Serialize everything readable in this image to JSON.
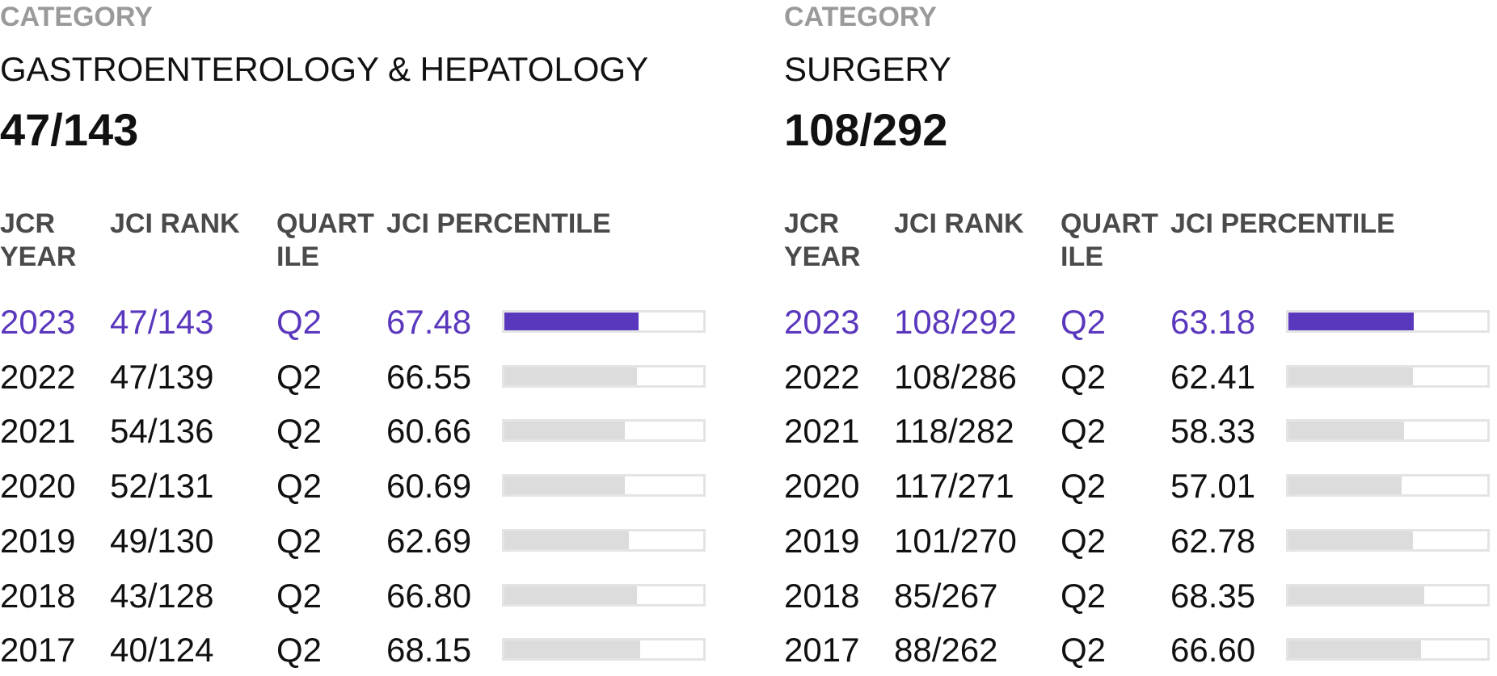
{
  "colors": {
    "accent": "#5a38bd",
    "bar_inactive": "#dcdcdc",
    "label_gray": "#9a9a9a"
  },
  "panels": [
    {
      "category_label": "CATEGORY",
      "category_name": "GASTROENTEROLOGY & HEPATOLOGY",
      "category_rank": "47/143",
      "headers": {
        "year": "JCR\nYEAR",
        "rank": "JCI RANK",
        "quartile": "QUART\nILE",
        "percentile": "JCI PERCENTILE"
      },
      "rows": [
        {
          "year": "2023",
          "rank": "47/143",
          "quartile": "Q2",
          "percentile": "67.48",
          "percentile_value": 67.48,
          "current": true
        },
        {
          "year": "2022",
          "rank": "47/139",
          "quartile": "Q2",
          "percentile": "66.55",
          "percentile_value": 66.55,
          "current": false
        },
        {
          "year": "2021",
          "rank": "54/136",
          "quartile": "Q2",
          "percentile": "60.66",
          "percentile_value": 60.66,
          "current": false
        },
        {
          "year": "2020",
          "rank": "52/131",
          "quartile": "Q2",
          "percentile": "60.69",
          "percentile_value": 60.69,
          "current": false
        },
        {
          "year": "2019",
          "rank": "49/130",
          "quartile": "Q2",
          "percentile": "62.69",
          "percentile_value": 62.69,
          "current": false
        },
        {
          "year": "2018",
          "rank": "43/128",
          "quartile": "Q2",
          "percentile": "66.80",
          "percentile_value": 66.8,
          "current": false
        },
        {
          "year": "2017",
          "rank": "40/124",
          "quartile": "Q2",
          "percentile": "68.15",
          "percentile_value": 68.15,
          "current": false
        }
      ]
    },
    {
      "category_label": "CATEGORY",
      "category_name": "SURGERY",
      "category_rank": "108/292",
      "headers": {
        "year": "JCR\nYEAR",
        "rank": "JCI RANK",
        "quartile": "QUART\nILE",
        "percentile": "JCI PERCENTILE"
      },
      "rows": [
        {
          "year": "2023",
          "rank": "108/292",
          "quartile": "Q2",
          "percentile": "63.18",
          "percentile_value": 63.18,
          "current": true
        },
        {
          "year": "2022",
          "rank": "108/286",
          "quartile": "Q2",
          "percentile": "62.41",
          "percentile_value": 62.41,
          "current": false
        },
        {
          "year": "2021",
          "rank": "118/282",
          "quartile": "Q2",
          "percentile": "58.33",
          "percentile_value": 58.33,
          "current": false
        },
        {
          "year": "2020",
          "rank": "117/271",
          "quartile": "Q2",
          "percentile": "57.01",
          "percentile_value": 57.01,
          "current": false
        },
        {
          "year": "2019",
          "rank": "101/270",
          "quartile": "Q2",
          "percentile": "62.78",
          "percentile_value": 62.78,
          "current": false
        },
        {
          "year": "2018",
          "rank": "85/267",
          "quartile": "Q2",
          "percentile": "68.35",
          "percentile_value": 68.35,
          "current": false
        },
        {
          "year": "2017",
          "rank": "88/262",
          "quartile": "Q2",
          "percentile": "66.60",
          "percentile_value": 66.6,
          "current": false
        }
      ]
    }
  ]
}
